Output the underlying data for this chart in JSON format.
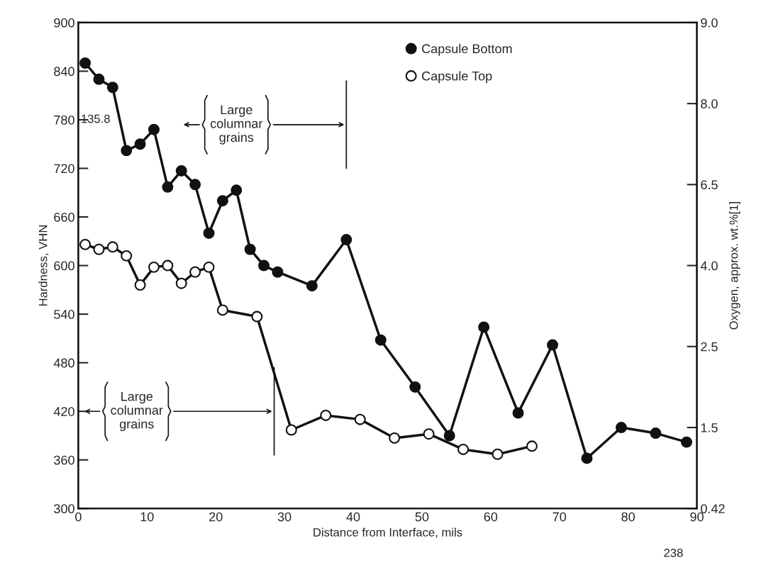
{
  "chart_data": {
    "type": "line",
    "xlabel": "Distance from Interface, mils",
    "ylabel": "Hardness, VHN",
    "y2label": "Oxygen, approx. wt.%[1]",
    "xlim": [
      0,
      90
    ],
    "xticks": [
      0,
      10,
      20,
      30,
      40,
      50,
      60,
      70,
      80,
      90
    ],
    "ylim": [
      300,
      900
    ],
    "yticks": [
      300,
      360,
      420,
      480,
      540,
      600,
      660,
      720,
      780,
      840,
      900
    ],
    "y2_categories": [
      "9.0",
      "8.0",
      "6.5",
      "4.0",
      "2.5",
      "1.5",
      "0.42"
    ],
    "marker": "circle",
    "line_style": "solid",
    "legend": "top",
    "grid": false,
    "series": [
      {
        "name": "Capsule Bottom",
        "color": "#111111",
        "x": [
          1,
          3,
          5,
          7,
          9,
          11,
          13,
          15,
          17,
          19,
          21,
          23,
          25,
          27,
          29,
          34,
          39,
          44,
          49,
          54,
          59,
          64,
          69,
          74,
          79,
          84,
          88.5
        ],
        "values": [
          850,
          830,
          820,
          742,
          750,
          768,
          697,
          717,
          700,
          640,
          680,
          693,
          620,
          600,
          592,
          575,
          632,
          508,
          450,
          390,
          524,
          418,
          502,
          362,
          400,
          393,
          382
        ]
      },
      {
        "name": "Capsule Top",
        "color": "#ffffff",
        "x": [
          1,
          3,
          5,
          7,
          9,
          11,
          13,
          15,
          17,
          19,
          21,
          26,
          31,
          36,
          41,
          46,
          51,
          56,
          61,
          66
        ],
        "values": [
          626,
          620,
          623,
          612,
          576,
          598,
          600,
          578,
          592,
          598,
          545,
          537,
          397,
          415,
          410,
          387,
          392,
          373,
          367,
          377
        ]
      }
    ],
    "ref_lines": [
      {
        "axis": "x",
        "value": 39,
        "label": "Large columnar grains"
      },
      {
        "axis": "x",
        "value": 28.5,
        "label": "Large columnar grains"
      }
    ],
    "annotations": [
      "135.8",
      "238"
    ]
  }
}
